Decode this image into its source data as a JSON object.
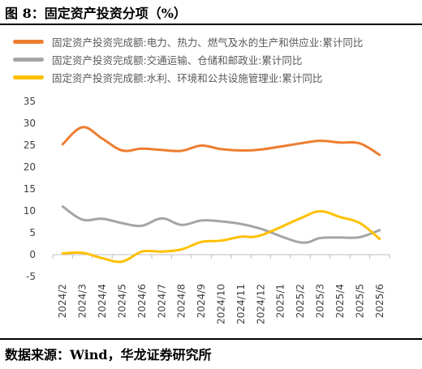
{
  "header": {
    "title": "图 8：固定资产投资分项（%）"
  },
  "source": {
    "text": "数据来源：Wind，华龙证券研究所"
  },
  "chart_data": {
    "type": "line",
    "categories": [
      "2024/2",
      "2024/3",
      "2024/4",
      "2024/5",
      "2024/6",
      "2024/7",
      "2024/8",
      "2024/9",
      "2024/10",
      "2024/11",
      "2024/12",
      "2025/1",
      "2025/2",
      "2025/3",
      "2025/4",
      "2025/5",
      "2025/6"
    ],
    "series": [
      {
        "name": "固定资产投资完成额:电力、热力、燃气及水的生产和供应业:累计同比",
        "color": "#ED7D31",
        "values": [
          25.2,
          29.1,
          26.5,
          23.8,
          24.2,
          23.9,
          23.7,
          24.9,
          24.1,
          23.8,
          24.0,
          null,
          25.4,
          26.0,
          25.6,
          25.4,
          22.8
        ]
      },
      {
        "name": "固定资产投资完成额:交通运输、仓储和邮政业:累计同比",
        "color": "#A5A5A5",
        "values": [
          11.0,
          8.0,
          8.2,
          7.2,
          6.6,
          8.3,
          6.8,
          7.8,
          7.6,
          7.0,
          5.9,
          null,
          2.8,
          3.8,
          3.9,
          4.0,
          5.6
        ]
      },
      {
        "name": "固定资产投资完成额:水利、环境和公共设施管理业:累计同比",
        "color": "#FFC000",
        "values": [
          0.3,
          0.4,
          -0.8,
          -1.6,
          0.7,
          0.7,
          1.2,
          2.9,
          3.2,
          4.1,
          4.4,
          null,
          8.3,
          9.9,
          8.6,
          7.2,
          3.6
        ]
      }
    ],
    "ylim": [
      -5,
      35
    ],
    "yticks": [
      -5,
      0,
      5,
      10,
      15,
      20,
      25,
      30,
      35
    ],
    "grid": false,
    "legend_position": "top"
  }
}
